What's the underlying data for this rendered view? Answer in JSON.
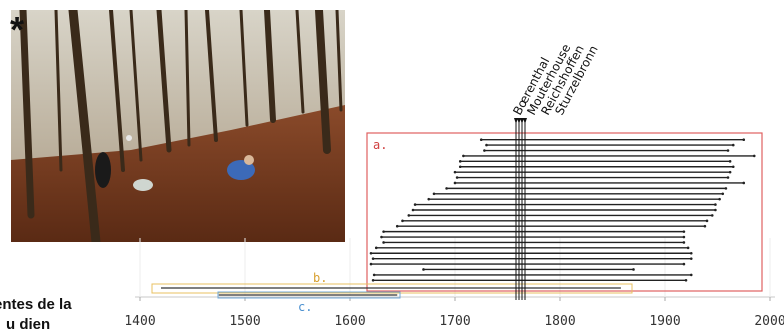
{
  "photo": {
    "marker": "*",
    "icon": "forest-photo"
  },
  "caption": {
    "line1": "entes de la",
    "line2": "u dien"
  },
  "chart_data": {
    "type": "range-bar",
    "title": "",
    "xlabel": "",
    "ylabel": "",
    "xlim": [
      1400,
      2000
    ],
    "x_ticks": [
      1400,
      1500,
      1600,
      1700,
      1800,
      1900,
      2000
    ],
    "x_tick_labels": [
      "1400",
      "1500",
      "1600",
      "1700",
      "1800",
      "1900",
      "2000"
    ],
    "reference_labels": [
      "Bœrenthal",
      "Mouterhouse",
      "Reichshoffen",
      "Sturzelbronn"
    ],
    "reference_years": [
      1757,
      1760,
      1763,
      1766
    ],
    "groups": [
      {
        "label": "a.",
        "color": "#e06060",
        "intervals": [
          [
            1725,
            1975
          ],
          [
            1730,
            1965
          ],
          [
            1728,
            1960
          ],
          [
            1708,
            1985
          ],
          [
            1705,
            1962
          ],
          [
            1705,
            1965
          ],
          [
            1700,
            1962
          ],
          [
            1702,
            1960
          ],
          [
            1700,
            1975
          ],
          [
            1692,
            1958
          ],
          [
            1680,
            1955
          ],
          [
            1675,
            1952
          ],
          [
            1662,
            1948
          ],
          [
            1660,
            1948
          ],
          [
            1656,
            1945
          ],
          [
            1650,
            1940
          ],
          [
            1645,
            1938
          ],
          [
            1632,
            1918
          ],
          [
            1630,
            1918
          ],
          [
            1632,
            1918
          ],
          [
            1625,
            1922
          ],
          [
            1620,
            1925
          ],
          [
            1622,
            1925
          ],
          [
            1620,
            1918
          ],
          [
            1670,
            1870
          ],
          [
            1623,
            1925
          ],
          [
            1622,
            1920
          ]
        ]
      },
      {
        "label": "b.",
        "color": "#e8c060",
        "intervals": [
          [
            1420,
            1858
          ]
        ]
      },
      {
        "label": "c.",
        "color": "#70a8d8",
        "intervals": [
          [
            1475,
            1645
          ]
        ]
      }
    ]
  }
}
